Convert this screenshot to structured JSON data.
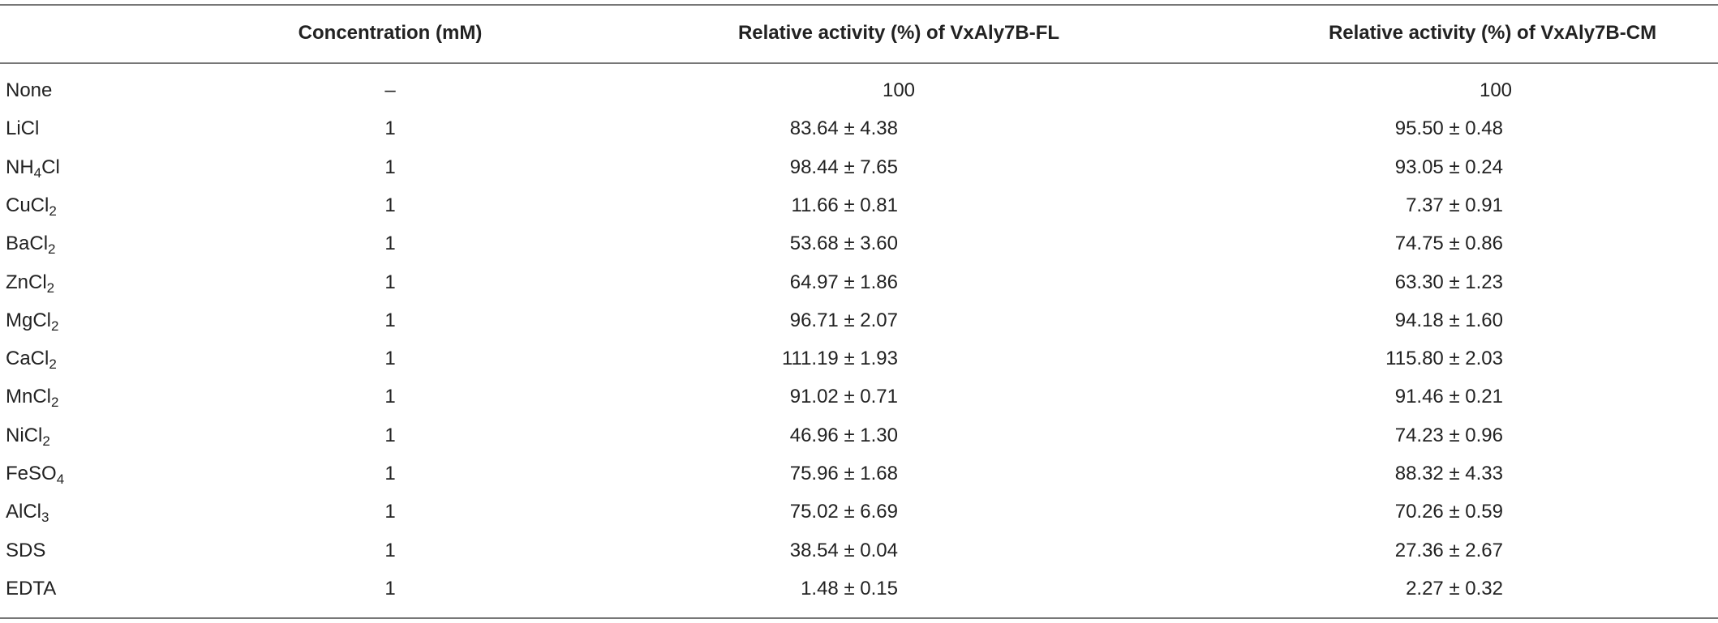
{
  "table": {
    "header": [
      "",
      "Concentration (mM)",
      "Relative activity (%) of VxAly7B-FL",
      "Relative activity (%) of VxAly7B-CM"
    ],
    "rows": [
      [
        [
          {
            "text": "None"
          }
        ],
        "–",
        100,
        100
      ],
      [
        [
          {
            "text": "LiCl"
          }
        ],
        1,
        "83.64 ± 4.38",
        "95.50 ± 0.48"
      ],
      [
        [
          {
            "text": "NH"
          },
          {
            "sub": "4"
          },
          {
            "text": "Cl"
          }
        ],
        1,
        "98.44 ± 7.65",
        "93.05 ± 0.24"
      ],
      [
        [
          {
            "text": "CuCl"
          },
          {
            "sub": "2"
          }
        ],
        1,
        "11.66 ± 0.81",
        "7.37 ± 0.91"
      ],
      [
        [
          {
            "text": "BaCl"
          },
          {
            "sub": "2"
          }
        ],
        1,
        "53.68 ± 3.60",
        "74.75 ± 0.86"
      ],
      [
        [
          {
            "text": "ZnCl"
          },
          {
            "sub": "2"
          }
        ],
        1,
        "64.97 ± 1.86",
        "63.30 ± 1.23"
      ],
      [
        [
          {
            "text": "MgCl"
          },
          {
            "sub": "2"
          }
        ],
        1,
        "96.71 ± 2.07",
        "94.18 ± 1.60"
      ],
      [
        [
          {
            "text": "CaCl"
          },
          {
            "sub": "2"
          }
        ],
        1,
        "111.19 ± 1.93",
        "115.80 ± 2.03"
      ],
      [
        [
          {
            "text": "MnCl"
          },
          {
            "sub": "2"
          }
        ],
        1,
        "91.02 ± 0.71",
        "91.46 ± 0.21"
      ],
      [
        [
          {
            "text": "NiCl"
          },
          {
            "sub": "2"
          }
        ],
        1,
        "46.96 ± 1.30",
        "74.23 ± 0.96"
      ],
      [
        [
          {
            "text": "FeSO"
          },
          {
            "sub": "4"
          }
        ],
        1,
        "75.96 ± 1.68",
        "88.32 ± 4.33"
      ],
      [
        [
          {
            "text": "AlCl"
          },
          {
            "sub": "3"
          }
        ],
        1,
        "75.02 ± 6.69",
        "70.26 ± 0.59"
      ],
      [
        [
          {
            "text": "SDS"
          }
        ],
        1,
        "38.54 ± 0.04",
        "27.36 ± 2.67"
      ],
      [
        [
          {
            "text": "EDTA"
          }
        ],
        1,
        "1.48 ± 0.15",
        "2.27 ± 0.32"
      ]
    ]
  }
}
